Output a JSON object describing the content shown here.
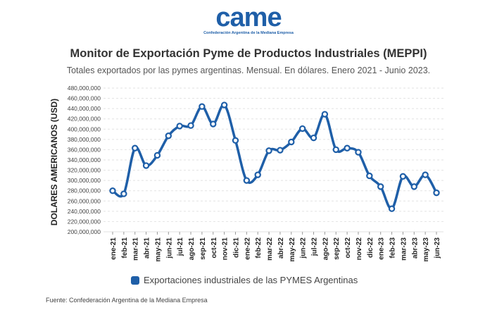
{
  "logo": {
    "text": "came",
    "subtitle": "Confederación Argentina de la Mediana Empresa"
  },
  "colors": {
    "series": "#1f5fa8",
    "grid": "#e2e2e2",
    "text": "#333333"
  },
  "chart_data": {
    "type": "line",
    "title": "Monitor de Exportación Pyme de Productos Industriales (MEPPI)",
    "subtitle": "Totales exportados por las pymes argentinas. Mensual. En dólares. Enero 2021 - Junio 2023.",
    "xlabel": "",
    "ylabel": "DOLARES AMERICANOS (USD)",
    "ylim": [
      200000000,
      480000000
    ],
    "yticks": [
      "200,000,000",
      "220,000,000",
      "240,000,000",
      "260,000,000",
      "280,000,000",
      "300,000,000",
      "320,000,000",
      "340,000,000",
      "360,000,000",
      "380,000,000",
      "400,000,000",
      "420,000,000",
      "440,000,000",
      "460,000,000",
      "480,000,000"
    ],
    "xtick_labels": [
      "ene-21",
      "feb-21",
      "mar-21",
      "abr-21",
      "may-21",
      "jun-21",
      "jul-21",
      "ago-21",
      "sep-21",
      "oct-21",
      "nov-21",
      "dic-21",
      "ene-22",
      "feb-22",
      "mar-22",
      "abr-22",
      "may-22",
      "jun-22",
      "jul-22",
      "ago-22",
      "sep-22",
      "oct-22",
      "nov-22",
      "dic-22",
      "ene-23",
      "feb-23",
      "mar-23",
      "abr-23",
      "may-23",
      "jun-23"
    ],
    "series": [
      {
        "name": "Exportaciones industriales de las PYMES Argentinas",
        "values": [
          280000000,
          274000000,
          363000000,
          329000000,
          349000000,
          387000000,
          406000000,
          407000000,
          444000000,
          410000000,
          447000000,
          378000000,
          300000000,
          311000000,
          358000000,
          359000000,
          375000000,
          401000000,
          383000000,
          429000000,
          360000000,
          363000000,
          355000000,
          309000000,
          288000000,
          245000000,
          308000000,
          288000000,
          311000000,
          276000000
        ]
      }
    ]
  },
  "legend": {
    "label": "Exportaciones industriales de las PYMES Argentinas"
  },
  "source": "Fuente: Confederación Argentina de la Mediana Empresa"
}
